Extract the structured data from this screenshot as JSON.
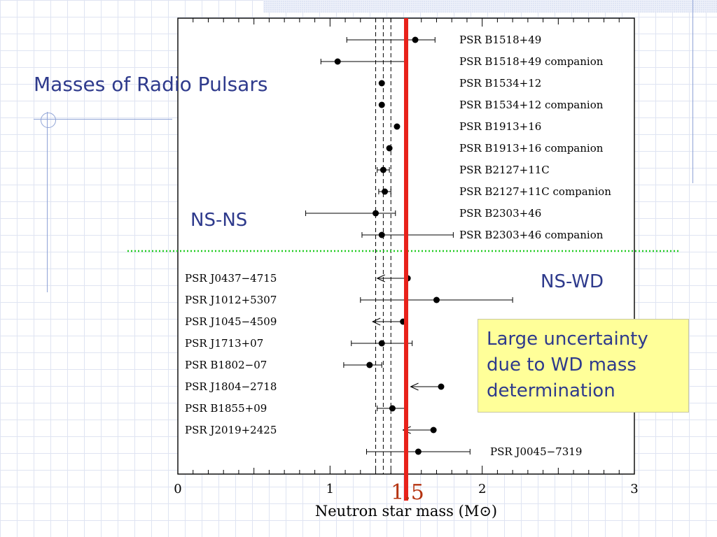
{
  "slide": {
    "title": "Masses of Radio Pulsars",
    "ns_ns_label": "NS-NS",
    "ns_wd_label": "NS-WD",
    "callout": "Large uncertainty due to WD mass determination"
  },
  "colors": {
    "title": "#2e3a8c",
    "marker_line": "#e8221b",
    "marker_label": "#b5330f",
    "divider": "#22cc22",
    "callout_bg": "#ffff99"
  },
  "chart_data": {
    "type": "scatter",
    "title": "",
    "xlabel": "Neutron star mass (M⊙)",
    "ylabel": "",
    "xlim": [
      0,
      3
    ],
    "xticks": [
      0,
      1,
      2,
      3
    ],
    "marker": {
      "value": 1.5,
      "label": "1.5"
    },
    "reference_lines": [
      1.3,
      1.35,
      1.4
    ],
    "ns_ns": [
      {
        "name": "PSR B1518+49",
        "mass": 1.56,
        "err_low": 0.45,
        "err_high": 0.13
      },
      {
        "name": "PSR B1518+49 companion",
        "mass": 1.05,
        "err_low": 0.11,
        "err_high": 0.45
      },
      {
        "name": "PSR B1534+12",
        "mass": 1.34,
        "err_low": 0.0,
        "err_high": 0.0
      },
      {
        "name": "PSR B1534+12 companion",
        "mass": 1.34,
        "err_low": 0.0,
        "err_high": 0.0
      },
      {
        "name": "PSR B1913+16",
        "mass": 1.44,
        "err_low": 0.0,
        "err_high": 0.0
      },
      {
        "name": "PSR B1913+16 companion",
        "mass": 1.39,
        "err_low": 0.0,
        "err_high": 0.0
      },
      {
        "name": "PSR B2127+11C",
        "mass": 1.35,
        "err_low": 0.04,
        "err_high": 0.04
      },
      {
        "name": "PSR B2127+11C companion",
        "mass": 1.36,
        "err_low": 0.04,
        "err_high": 0.04
      },
      {
        "name": "PSR B2303+46",
        "mass": 1.3,
        "err_low": 0.46,
        "err_high": 0.13
      },
      {
        "name": "PSR B2303+46 companion",
        "mass": 1.34,
        "err_low": 0.13,
        "err_high": 0.47
      }
    ],
    "ns_wd": [
      {
        "name": "PSR J0437−4715",
        "mass": 1.51,
        "err_low": 0.2,
        "err_high": 0.0,
        "upper_limit": true
      },
      {
        "name": "PSR J1012+5307",
        "mass": 1.7,
        "err_low": 0.5,
        "err_high": 0.5
      },
      {
        "name": "PSR J1045−4509",
        "mass": 1.48,
        "err_low": 0.2,
        "err_high": 0.0,
        "upper_limit": true
      },
      {
        "name": "PSR J1713+07",
        "mass": 1.34,
        "err_low": 0.2,
        "err_high": 0.2
      },
      {
        "name": "PSR B1802−07",
        "mass": 1.26,
        "err_low": 0.17,
        "err_high": 0.08
      },
      {
        "name": "PSR J1804−2718",
        "mass": 1.73,
        "err_low": 0.2,
        "err_high": 0.0,
        "upper_limit": true
      },
      {
        "name": "PSR B1855+09",
        "mass": 1.41,
        "err_low": 0.1,
        "err_high": 0.1
      },
      {
        "name": "PSR J2019+2425",
        "mass": 1.68,
        "err_low": 0.2,
        "err_high": 0.0,
        "upper_limit": true
      },
      {
        "name": "PSR J0045−7319",
        "mass": 1.58,
        "err_low": 0.34,
        "err_high": 0.34
      }
    ]
  }
}
